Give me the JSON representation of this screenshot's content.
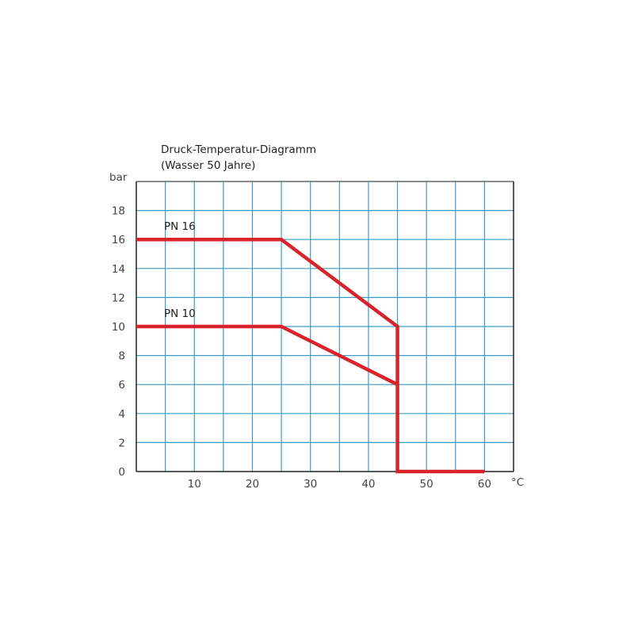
{
  "chart_data": {
    "type": "line",
    "title": "Druck-Temperatur-Diagramm",
    "subtitle": "(Wasser 50 Jahre)",
    "xlabel": "°C",
    "ylabel": "bar",
    "xlim": [
      0,
      65
    ],
    "ylim": [
      0,
      20
    ],
    "x_ticks": [
      10,
      20,
      30,
      40,
      50,
      60
    ],
    "y_ticks": [
      0,
      2,
      4,
      6,
      8,
      10,
      12,
      14,
      16,
      18
    ],
    "grid": true,
    "grid_x_step": 5,
    "grid_y_step": 2,
    "colors": {
      "line": "#d8232a",
      "grid": "#3d9cc4",
      "axis": "#222222"
    },
    "series": [
      {
        "name": "PN 16",
        "x": [
          0,
          25,
          45,
          45,
          60
        ],
        "y": [
          16,
          16,
          10,
          0,
          0
        ]
      },
      {
        "name": "PN 10",
        "x": [
          0,
          25,
          45
        ],
        "y": [
          10,
          10,
          6
        ]
      }
    ]
  }
}
